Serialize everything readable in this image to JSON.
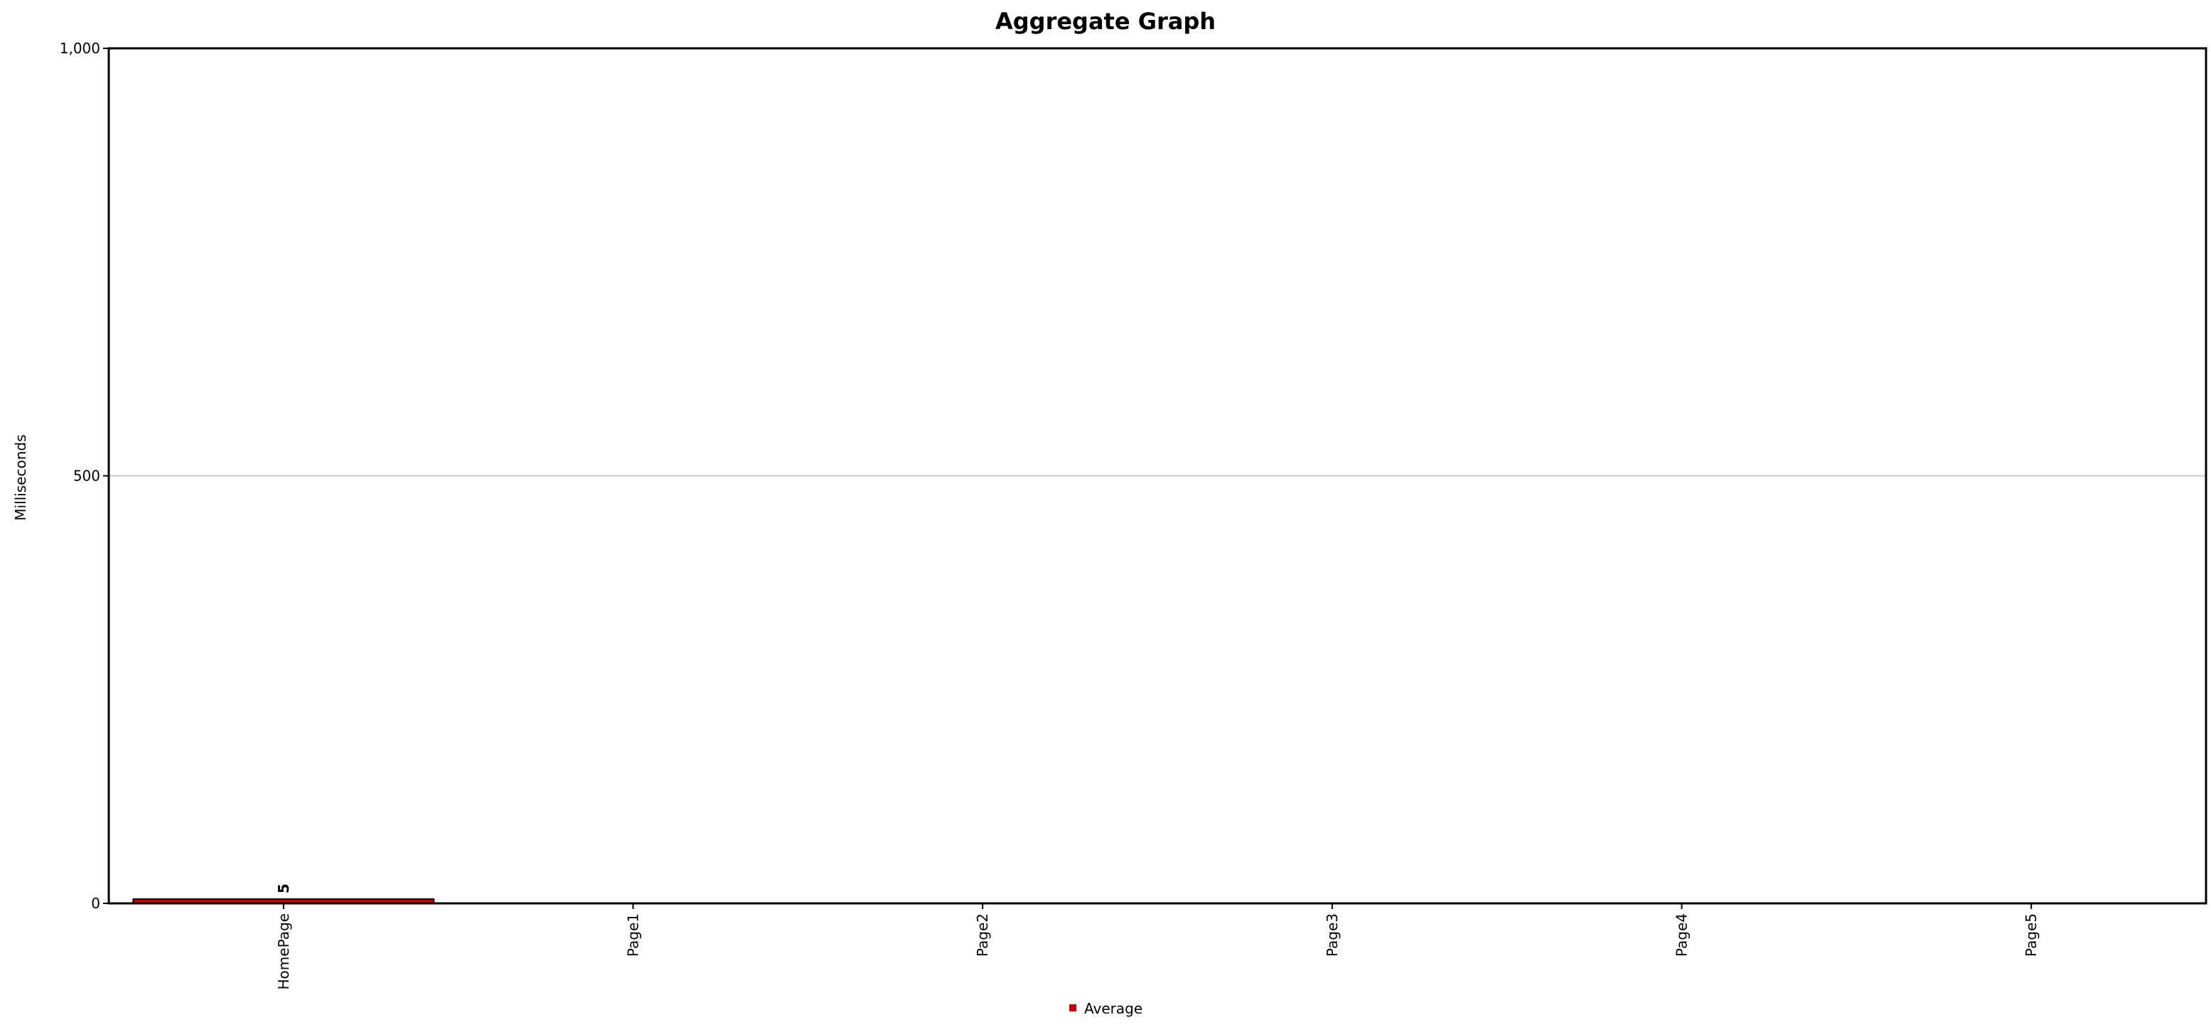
{
  "chart_data": {
    "type": "bar",
    "title": "Aggregate Graph",
    "xlabel": "",
    "ylabel": "Milliseconds",
    "categories": [
      "HomePage",
      "Page1",
      "Page2",
      "Page3",
      "Page4",
      "Page5"
    ],
    "series": [
      {
        "name": "Average",
        "values": [
          5,
          0,
          0,
          0,
          0,
          0
        ],
        "color": "#cc0000"
      }
    ],
    "data_labels": [
      "5",
      "",
      "",
      "",
      "",
      ""
    ],
    "ylim": [
      0,
      1000
    ],
    "yticks": [
      0,
      500,
      1000
    ],
    "ytick_labels": [
      "0",
      "500",
      "1,000"
    ],
    "grid": true,
    "legend_position": "bottom-center"
  }
}
